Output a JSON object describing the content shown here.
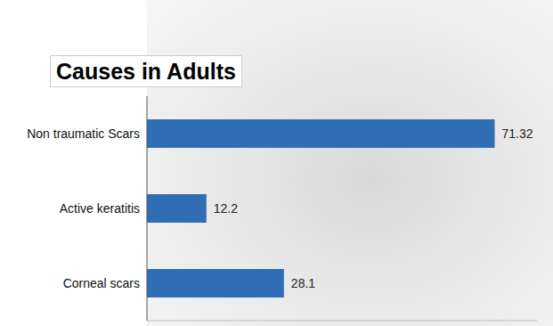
{
  "chart_data": {
    "type": "bar",
    "title": "Causes in Adults",
    "orientation": "horizontal",
    "categories": [
      "Non traumatic Scars",
      "Active keratitis",
      "Corneal scars"
    ],
    "values": [
      71.32,
      12.2,
      28.1
    ],
    "color": "#2f6db5",
    "xlim": [
      0,
      80
    ],
    "grid": false,
    "data_labels": true,
    "tick_labels": "y"
  }
}
